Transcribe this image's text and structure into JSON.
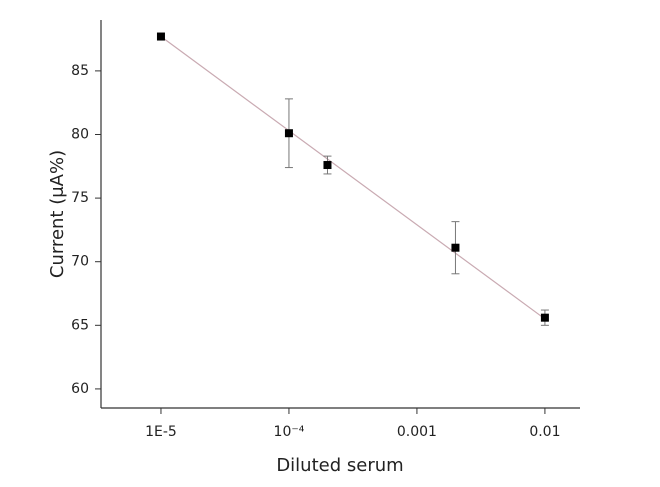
{
  "chart_data": {
    "type": "scatter",
    "x_label": "Diluted serum",
    "y_label": "Current (μA%)",
    "x": [
      1e-05,
      0.0001,
      0.0002,
      0.002,
      0.01
    ],
    "series": [
      {
        "values": [
          87.7,
          80.1,
          77.6,
          71.1,
          65.6
        ],
        "errors": [
          null,
          2.7,
          0.7,
          2.05,
          0.6
        ],
        "color": "#000000"
      }
    ],
    "fit_line": {
      "x": [
        1e-05,
        0.01
      ],
      "y": [
        87.7,
        65.5
      ],
      "color": "#c9aab2"
    },
    "x_log": true,
    "xlim": [
      3.4e-06,
      0.0188
    ],
    "xticks": [
      {
        "value": 1e-05,
        "label": "1E-5"
      },
      {
        "value": 0.0001,
        "label": "10⁻⁴"
      },
      0.001,
      0.01
    ],
    "ylim": [
      58.5,
      89
    ],
    "yticks": [
      60,
      65,
      70,
      75,
      80,
      85
    ]
  }
}
